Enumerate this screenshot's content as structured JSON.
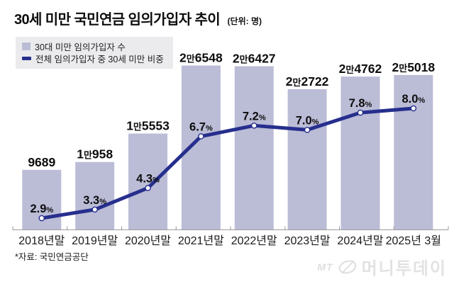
{
  "header": {
    "title": "30세 미만 국민연금 임의가입자 추이",
    "unit_note": "(단위: 명)"
  },
  "legend": {
    "bar_label": "30대 미만 임의가입자 수",
    "line_label": "전체 임의가입자 중 30세 미만 비중"
  },
  "footer": {
    "source": "*자료: 국민연금공단",
    "logo_mt": "MT",
    "logo_text": "머니투데이"
  },
  "colors": {
    "bar": "#bbbcd6",
    "line": "#262f8d",
    "dot_fill": "#ffffff",
    "axis": "#9b9b9b",
    "label": "#0d0d0d",
    "legend_bg": "#ebebee",
    "logo": "#e2e2e2"
  },
  "chart_data": {
    "type": "bar",
    "title": "30세 미만 국민연금 임의가입자 추이",
    "unit": "명",
    "categories": [
      "2018년말",
      "2019년말",
      "2020년말",
      "2021년말",
      "2022년말",
      "2023년말",
      "2024년말",
      "2025년 3월"
    ],
    "series": [
      {
        "name": "30대 미만 임의가입자 수",
        "type": "bar",
        "values": [
          9689,
          10958,
          15553,
          26548,
          26427,
          22722,
          24762,
          25018
        ],
        "labels": [
          "9689",
          "1만958",
          "1만5553",
          "2만6548",
          "2만6427",
          "2만2722",
          "2만4762",
          "2만5018"
        ]
      },
      {
        "name": "전체 임의가입자 중 30세 미만 비중",
        "type": "line",
        "values": [
          2.9,
          3.3,
          4.3,
          6.7,
          7.2,
          7.0,
          7.8,
          8.0
        ],
        "labels": [
          "2.9%",
          "3.3%",
          "4.3%",
          "6.7%",
          "7.2%",
          "7.0%",
          "7.8%",
          "8.0%"
        ]
      }
    ],
    "ylim_bar": [
      0,
      26548
    ],
    "ylim_line_pct": [
      0,
      10
    ],
    "grid": false,
    "legend_position": "top-left"
  }
}
